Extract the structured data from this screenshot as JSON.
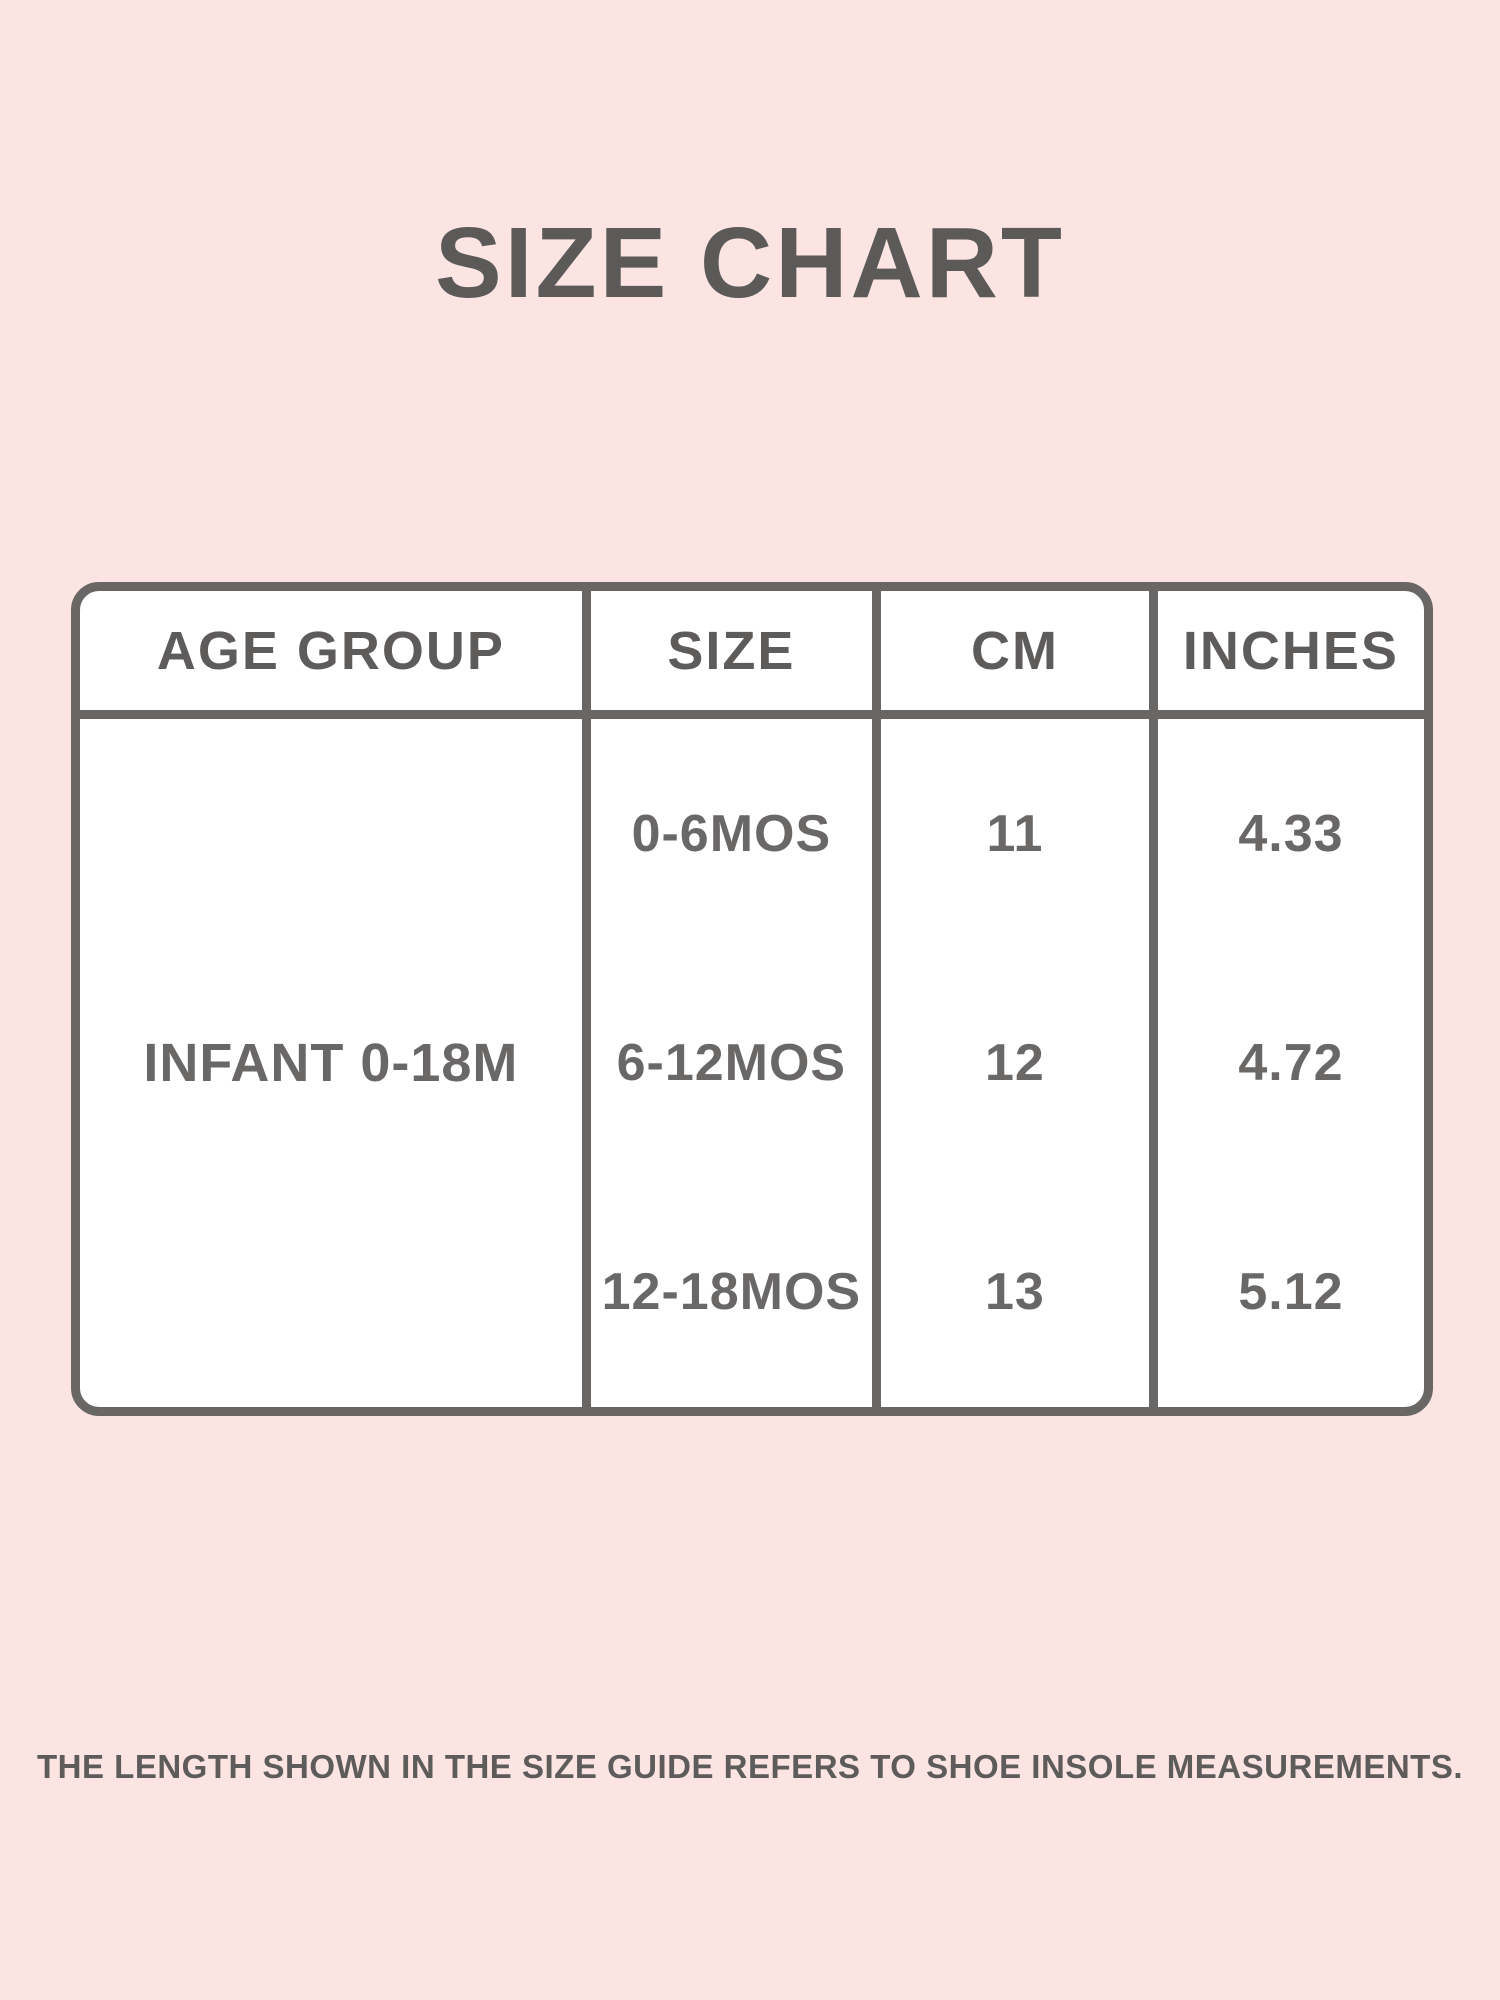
{
  "page": {
    "title": "SIZE CHART",
    "footnote": "THE LENGTH SHOWN IN THE SIZE GUIDE REFERS TO SHOE INSOLE MEASUREMENTS.",
    "colors": {
      "background": "#fbe4e2",
      "cell_background": "#ffffff",
      "line_gray": "#696666",
      "text_gray": "#5e5b5b"
    }
  },
  "size_table": {
    "headers": [
      "AGE GROUP",
      "SIZE",
      "CM",
      "INCHES"
    ],
    "age_group": "INFANT 0-18M",
    "rows": [
      {
        "size": "0-6MOS",
        "cm": "11",
        "inches": "4.33"
      },
      {
        "size": "6-12MOS",
        "cm": "12",
        "inches": "4.72"
      },
      {
        "size": "12-18MOS",
        "cm": "13",
        "inches": "5.12"
      }
    ]
  },
  "chart_data": {
    "type": "table",
    "title": "SIZE CHART",
    "columns": [
      "AGE GROUP",
      "SIZE",
      "CM",
      "INCHES"
    ],
    "rows": [
      [
        "INFANT 0-18M",
        "0-6MOS",
        11,
        4.33
      ],
      [
        "INFANT 0-18M",
        "6-12MOS",
        12,
        4.72
      ],
      [
        "INFANT 0-18M",
        "12-18MOS",
        13,
        5.12
      ]
    ],
    "notes": "AGE GROUP cell spans all three rows; note line: THE LENGTH SHOWN IN THE SIZE GUIDE REFERS TO SHOE INSOLE MEASUREMENTS."
  }
}
